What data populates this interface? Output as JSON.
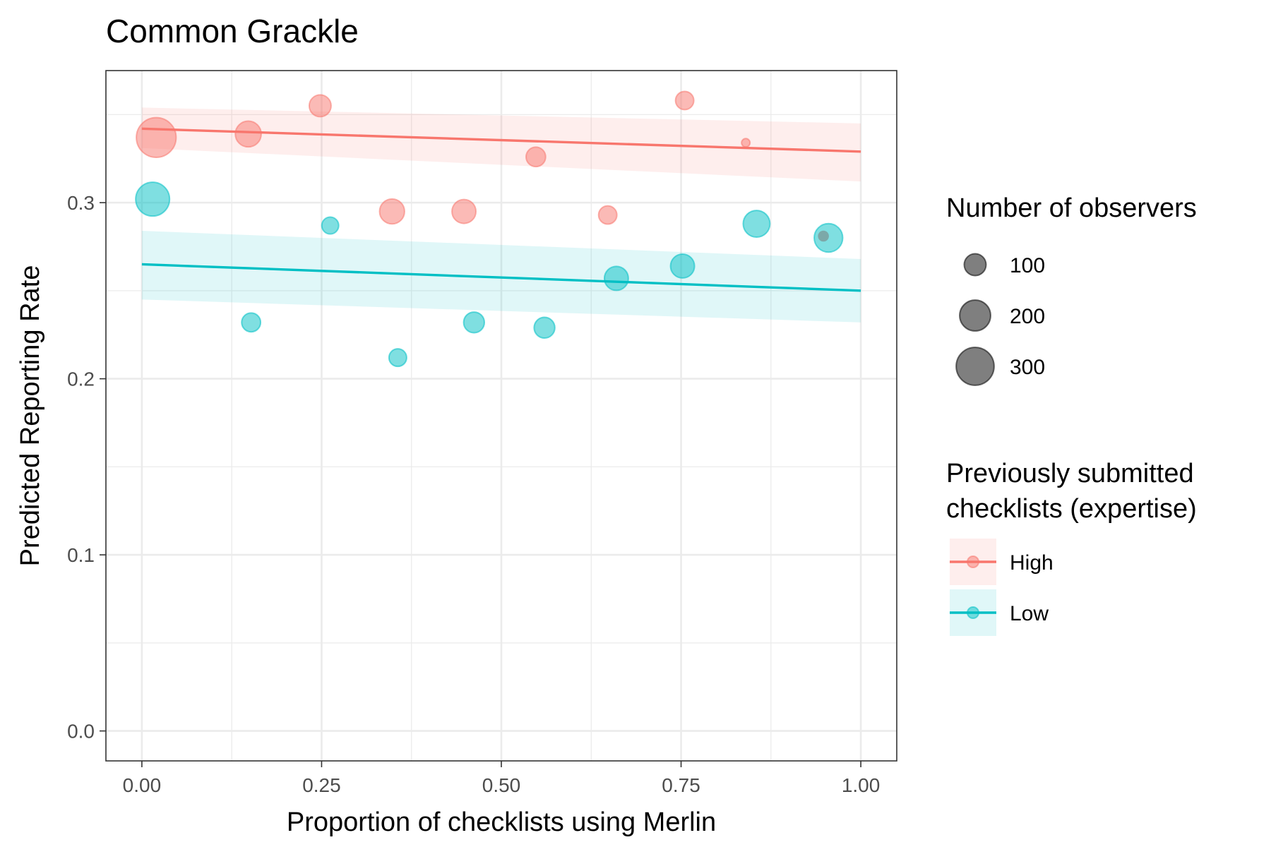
{
  "chart_data": {
    "type": "scatter",
    "title": "Common Grackle",
    "xlabel": "Proportion of checklists using Merlin",
    "ylabel": "Predicted Reporting Rate",
    "xlim": [
      -0.05,
      1.05
    ],
    "ylim": [
      -0.017,
      0.375
    ],
    "x_ticks": [
      0,
      0.25,
      0.5,
      0.75,
      1
    ],
    "x_tick_labels": [
      "0.00",
      "0.25",
      "0.50",
      "0.75",
      "1.00"
    ],
    "y_ticks": [
      0,
      0.1,
      0.2,
      0.3
    ],
    "y_tick_labels": [
      "0.0",
      "0.1",
      "0.2",
      "0.3"
    ],
    "grid": true,
    "legend_position": "right",
    "size_legend": {
      "title": "Number of observers",
      "entries": [
        {
          "label": "100",
          "value": 100
        },
        {
          "label": "200",
          "value": 200
        },
        {
          "label": "300",
          "value": 300
        }
      ]
    },
    "color_legend": {
      "title_lines": [
        "Previously submitted",
        "checklists (expertise)"
      ],
      "entries": [
        {
          "label": "High",
          "color": "#F8766D"
        },
        {
          "label": "Low",
          "color": "#00BFC4"
        }
      ]
    },
    "series": [
      {
        "name": "High",
        "color": "#F8766D",
        "points": [
          {
            "x": 0.02,
            "y": 0.337,
            "size": 330
          },
          {
            "x": 0.148,
            "y": 0.339,
            "size": 140
          },
          {
            "x": 0.248,
            "y": 0.355,
            "size": 100
          },
          {
            "x": 0.348,
            "y": 0.295,
            "size": 130
          },
          {
            "x": 0.448,
            "y": 0.295,
            "size": 120
          },
          {
            "x": 0.548,
            "y": 0.326,
            "size": 80
          },
          {
            "x": 0.648,
            "y": 0.293,
            "size": 70
          },
          {
            "x": 0.755,
            "y": 0.358,
            "size": 70
          },
          {
            "x": 0.84,
            "y": 0.334,
            "size": 15
          }
        ],
        "fit": {
          "x": [
            0,
            1
          ],
          "y": [
            0.342,
            0.329
          ]
        },
        "ci_lower": [
          0.331,
          0.312
        ],
        "ci_upper": [
          0.354,
          0.345
        ]
      },
      {
        "name": "Low",
        "color": "#00BFC4",
        "points": [
          {
            "x": 0.015,
            "y": 0.302,
            "size": 240
          },
          {
            "x": 0.152,
            "y": 0.232,
            "size": 75
          },
          {
            "x": 0.262,
            "y": 0.287,
            "size": 60
          },
          {
            "x": 0.356,
            "y": 0.212,
            "size": 65
          },
          {
            "x": 0.462,
            "y": 0.232,
            "size": 90
          },
          {
            "x": 0.56,
            "y": 0.229,
            "size": 90
          },
          {
            "x": 0.66,
            "y": 0.257,
            "size": 120
          },
          {
            "x": 0.752,
            "y": 0.264,
            "size": 120
          },
          {
            "x": 0.855,
            "y": 0.288,
            "size": 150
          },
          {
            "x": 0.955,
            "y": 0.28,
            "size": 170
          }
        ],
        "fit": {
          "x": [
            0,
            1
          ],
          "y": [
            0.265,
            0.25
          ]
        },
        "ci_lower": [
          0.245,
          0.232
        ],
        "ci_upper": [
          0.284,
          0.268
        ]
      }
    ],
    "extra_points": [
      {
        "x": 0.948,
        "y": 0.281,
        "size": 25,
        "color": "#7a7a7a"
      }
    ]
  }
}
